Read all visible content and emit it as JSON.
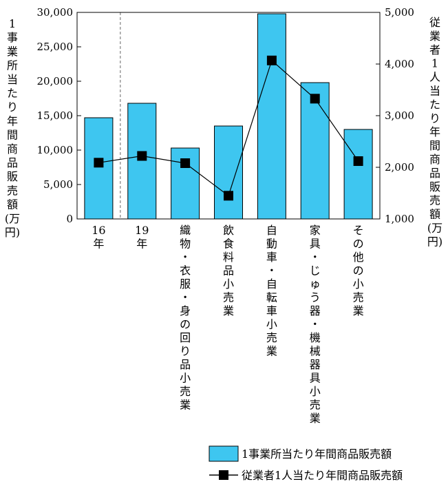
{
  "chart_data": {
    "type": "bar",
    "categories": [
      [
        "16",
        "年"
      ],
      [
        "19",
        "年"
      ],
      [
        "織",
        "物",
        "・",
        "衣",
        "服",
        "・",
        "身",
        "の",
        "回",
        "り",
        "品",
        "小",
        "売",
        "業"
      ],
      [
        "飲",
        "食",
        "料",
        "品",
        "小",
        "売",
        "業"
      ],
      [
        "自",
        "動",
        "車",
        "・",
        "自",
        "転",
        "車",
        "小",
        "売",
        "業"
      ],
      [
        "家",
        "具",
        "・",
        "じ",
        "ゅ",
        "う",
        "器",
        "・",
        "機",
        "械",
        "器",
        "具",
        "小",
        "売",
        "業"
      ],
      [
        "そ",
        "の",
        "他",
        "の",
        "小",
        "売",
        "業"
      ]
    ],
    "series": [
      {
        "name": "1事業所当たり年間商品販売額",
        "kind": "bar",
        "axis": "left",
        "color": "#3ec6f0",
        "values": [
          14700,
          16800,
          10300,
          13500,
          29800,
          19800,
          13000
        ]
      },
      {
        "name": "従業者1人当たり年間商品販売額",
        "kind": "line",
        "axis": "right",
        "color": "#000000",
        "values": [
          2090,
          2220,
          2080,
          1450,
          4070,
          3330,
          2120
        ]
      }
    ],
    "y_left": {
      "label": [
        "1",
        "事",
        "業",
        "所",
        "当",
        "た",
        "り",
        "年",
        "間",
        "商",
        "品",
        "販",
        "売",
        "額",
        "(万",
        "円)"
      ],
      "ylim": [
        0,
        30000
      ],
      "ticks": [
        "0",
        "5,000",
        "10,000",
        "15,000",
        "20,000",
        "25,000",
        "30,000"
      ],
      "tick_values": [
        0,
        5000,
        10000,
        15000,
        20000,
        25000,
        30000
      ]
    },
    "y_right": {
      "label": [
        "従",
        "業",
        "者",
        "1",
        "人",
        "当",
        "た",
        "り",
        "年",
        "間",
        "商",
        "品",
        "販",
        "売",
        "額",
        "(万",
        "円)"
      ],
      "ylim": [
        1000,
        5000
      ],
      "ticks": [
        "1,000",
        "2,000",
        "3,000",
        "4,000",
        "5,000"
      ],
      "tick_values": [
        1000,
        2000,
        3000,
        4000,
        5000
      ]
    },
    "divider_after_category": 1,
    "legend": {
      "placement": "bottom-right",
      "items": [
        "1事業所当たり年間商品販売額",
        "従業者1人当たり年間商品販売額"
      ]
    }
  }
}
